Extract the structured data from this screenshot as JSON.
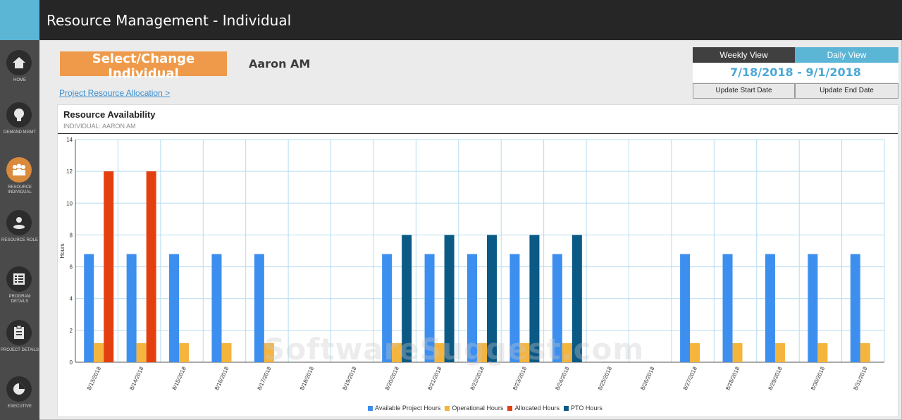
{
  "app": {
    "title": "Resource Management - Individual"
  },
  "sidebar": {
    "items": [
      {
        "label": "HOME",
        "icon": "home-icon"
      },
      {
        "label": "DEMAND MGMT",
        "icon": "lightbulb-icon"
      },
      {
        "label": "RESOURCE INDIVIDUAL",
        "icon": "people-icon",
        "active": true
      },
      {
        "label": "RESOURCE ROLE",
        "icon": "role-icon"
      },
      {
        "label": "PROGRAM DETAILS",
        "icon": "list-icon"
      },
      {
        "label": "PROJECT DETAILS",
        "icon": "clipboard-icon"
      },
      {
        "label": "EXECUTIVE",
        "icon": "pie-chart-icon"
      }
    ]
  },
  "header": {
    "select_button": "Select/Change Individual",
    "individual_name": "Aaron AM",
    "link": "Project Resource Allocation >"
  },
  "view": {
    "weekly_label": "Weekly View",
    "daily_label": "Daily View",
    "date_range": "7/18/2018 - 9/1/2018",
    "update_start": "Update Start Date",
    "update_end": "Update End Date"
  },
  "card": {
    "title": "Resource Availability",
    "subtitle": "INDIVIDUAL: AARON AM"
  },
  "watermark": "SoftwareSuggest.com",
  "chart_data": {
    "type": "bar",
    "ylabel": "Hours",
    "ylim": [
      0,
      14
    ],
    "yticks": [
      0,
      2,
      4,
      6,
      8,
      10,
      12,
      14
    ],
    "grid": true,
    "legend_position": "bottom",
    "categories": [
      "8/13/2018",
      "8/14/2018",
      "8/15/2018",
      "8/16/2018",
      "8/17/2018",
      "8/18/2018",
      "8/19/2018",
      "8/20/2018",
      "8/21/2018",
      "8/22/2018",
      "8/23/2018",
      "8/24/2018",
      "8/25/2018",
      "8/26/2018",
      "8/27/2018",
      "8/28/2018",
      "8/29/2018",
      "8/30/2018",
      "8/31/2018"
    ],
    "series": [
      {
        "name": "Available Project Hours",
        "color": "#3d8fef",
        "values": [
          6.8,
          6.8,
          6.8,
          6.8,
          6.8,
          0,
          0,
          6.8,
          6.8,
          6.8,
          6.8,
          6.8,
          0,
          0,
          6.8,
          6.8,
          6.8,
          6.8,
          6.8
        ]
      },
      {
        "name": "Operational Hours",
        "color": "#f5b43c",
        "values": [
          1.2,
          1.2,
          1.2,
          1.2,
          1.2,
          0,
          0,
          1.2,
          1.2,
          1.2,
          1.2,
          1.2,
          0,
          0,
          1.2,
          1.2,
          1.2,
          1.2,
          1.2
        ]
      },
      {
        "name": "Allocated Hours",
        "color": "#e4400f",
        "values": [
          12,
          12,
          0,
          0,
          0,
          0,
          0,
          0,
          0,
          0,
          0,
          0,
          0,
          0,
          0,
          0,
          0,
          0,
          0
        ]
      },
      {
        "name": "PTO Hours",
        "color": "#0b5a85",
        "values": [
          0,
          0,
          0,
          0,
          0,
          0,
          0,
          8,
          8,
          8,
          8,
          8,
          0,
          0,
          0,
          0,
          0,
          0,
          0
        ]
      }
    ]
  }
}
